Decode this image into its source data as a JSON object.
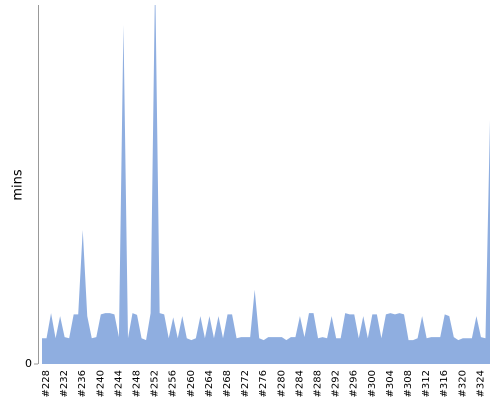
{
  "chart_data": {
    "type": "area",
    "y_label": "mins",
    "categories": [
      "#228",
      null,
      null,
      null,
      "#232",
      null,
      null,
      null,
      "#236",
      null,
      null,
      null,
      "#240",
      null,
      null,
      null,
      "#244",
      null,
      null,
      null,
      "#248",
      null,
      null,
      null,
      "#252",
      null,
      null,
      null,
      "#256",
      null,
      null,
      null,
      "#260",
      null,
      null,
      null,
      "#264",
      null,
      null,
      null,
      "#268",
      null,
      null,
      null,
      "#272",
      null,
      null,
      null,
      "#276",
      null,
      null,
      null,
      "#280",
      null,
      null,
      null,
      "#284",
      null,
      null,
      null,
      "#288",
      null,
      null,
      null,
      "#292",
      null,
      null,
      null,
      "#296",
      null,
      null,
      null,
      "#300",
      null,
      null,
      null,
      "#304",
      null,
      null,
      null,
      "#308",
      null,
      null,
      null,
      "#312",
      null,
      null,
      null,
      "#316",
      null,
      null,
      null,
      "#320",
      null,
      null,
      null,
      "#324",
      null,
      null,
      null
    ],
    "values": [
      4.3,
      4.3,
      8.5,
      4.3,
      8,
      4.5,
      4.3,
      8.3,
      8.3,
      22.4,
      8,
      4.3,
      4.5,
      8.3,
      8.5,
      8.5,
      8.3,
      4.5,
      56.7,
      4.3,
      8.5,
      8.2,
      4.3,
      4,
      8.5,
      65,
      8.5,
      8.3,
      4.3,
      7.8,
      4.3,
      8,
      4.3,
      4,
      4.3,
      8,
      4.3,
      8,
      4.3,
      8,
      4.3,
      8.3,
      8.3,
      4.3,
      4.5,
      4.5,
      4.5,
      12.4,
      4.3,
      4,
      4.5,
      4.5,
      4.5,
      4.5,
      4,
      4.5,
      4.5,
      8,
      4.5,
      8.5,
      8.5,
      4.3,
      4.5,
      4.3,
      8,
      4.3,
      4.3,
      8.5,
      8.3,
      8.3,
      4.3,
      8,
      4.3,
      8.3,
      8.3,
      4.3,
      8.3,
      8.5,
      8.3,
      8.5,
      8.3,
      4,
      4,
      4.3,
      8,
      4.3,
      4.5,
      4.5,
      4.5,
      8.3,
      8,
      4.5,
      4,
      4.3,
      4.3,
      4.3,
      8,
      4.5,
      4.3,
      40.8
    ],
    "color": "#8faee0",
    "ylim": [
      0,
      60
    ],
    "yticks": [
      0
    ]
  }
}
